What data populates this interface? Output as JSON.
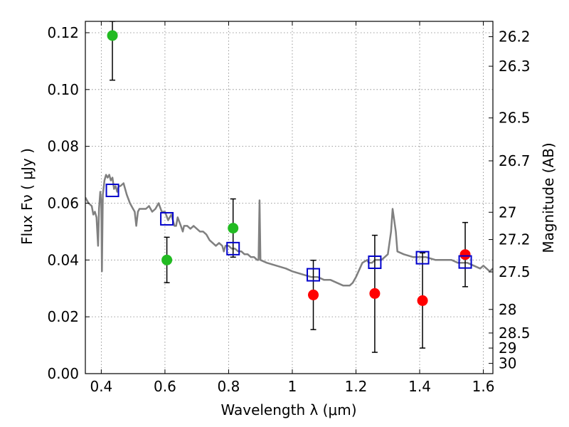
{
  "chart_data": {
    "type": "scatter",
    "xlabel": "Wavelength  λ (μm)",
    "ylabel": "Flux  Fν  ( μJy )",
    "ylabel_right": "Magnitude (AB)",
    "xlim": [
      0.35,
      1.63
    ],
    "ylim": [
      0.0,
      0.124
    ],
    "grid": true,
    "x_ticks": [
      0.4,
      0.6,
      0.8,
      1.0,
      1.2,
      1.4,
      1.6
    ],
    "x_tick_labels": [
      "0.4",
      "0.6",
      "0.8",
      "1",
      "1.2",
      "1.4",
      "1.6"
    ],
    "y_ticks": [
      0.0,
      0.02,
      0.04,
      0.06,
      0.08,
      0.1,
      0.12
    ],
    "y_tick_labels": [
      "0.00",
      "0.02",
      "0.04",
      "0.06",
      "0.08",
      "0.10",
      "0.12"
    ],
    "right_ticks": [
      {
        "label": "26.2",
        "flux": 0.1186
      },
      {
        "label": "26.3",
        "flux": 0.1082
      },
      {
        "label": "26.5",
        "flux": 0.09
      },
      {
        "label": "26.7",
        "flux": 0.0749
      },
      {
        "label": "27",
        "flux": 0.0568
      },
      {
        "label": "27.2",
        "flux": 0.0472
      },
      {
        "label": "27.5",
        "flux": 0.0358
      },
      {
        "label": "28",
        "flux": 0.0226
      },
      {
        "label": "28.5",
        "flux": 0.0143
      },
      {
        "label": "29",
        "flux": 0.009
      },
      {
        "label": "30",
        "flux": 0.0036
      }
    ],
    "series": [
      {
        "kind": "line",
        "color": "#808080",
        "points": [
          [
            0.35,
            0.062
          ],
          [
            0.36,
            0.06
          ],
          [
            0.37,
            0.059
          ],
          [
            0.375,
            0.056
          ],
          [
            0.38,
            0.057
          ],
          [
            0.385,
            0.055
          ],
          [
            0.39,
            0.045
          ],
          [
            0.393,
            0.058
          ],
          [
            0.397,
            0.064
          ],
          [
            0.4,
            0.06
          ],
          [
            0.402,
            0.036
          ],
          [
            0.405,
            0.063
          ],
          [
            0.41,
            0.068
          ],
          [
            0.415,
            0.07
          ],
          [
            0.42,
            0.069
          ],
          [
            0.425,
            0.07
          ],
          [
            0.43,
            0.068
          ],
          [
            0.435,
            0.069
          ],
          [
            0.44,
            0.065
          ],
          [
            0.445,
            0.066
          ],
          [
            0.45,
            0.064
          ],
          [
            0.455,
            0.066
          ],
          [
            0.46,
            0.066
          ],
          [
            0.47,
            0.067
          ],
          [
            0.48,
            0.063
          ],
          [
            0.49,
            0.06
          ],
          [
            0.5,
            0.058
          ],
          [
            0.505,
            0.057
          ],
          [
            0.51,
            0.052
          ],
          [
            0.515,
            0.057
          ],
          [
            0.52,
            0.058
          ],
          [
            0.53,
            0.058
          ],
          [
            0.54,
            0.058
          ],
          [
            0.55,
            0.059
          ],
          [
            0.56,
            0.057
          ],
          [
            0.57,
            0.058
          ],
          [
            0.58,
            0.06
          ],
          [
            0.59,
            0.057
          ],
          [
            0.6,
            0.057
          ],
          [
            0.61,
            0.054
          ],
          [
            0.62,
            0.056
          ],
          [
            0.63,
            0.052
          ],
          [
            0.635,
            0.052
          ],
          [
            0.64,
            0.055
          ],
          [
            0.65,
            0.052
          ],
          [
            0.656,
            0.05
          ],
          [
            0.66,
            0.052
          ],
          [
            0.67,
            0.052
          ],
          [
            0.68,
            0.051
          ],
          [
            0.69,
            0.052
          ],
          [
            0.7,
            0.051
          ],
          [
            0.71,
            0.05
          ],
          [
            0.72,
            0.05
          ],
          [
            0.73,
            0.049
          ],
          [
            0.74,
            0.047
          ],
          [
            0.75,
            0.046
          ],
          [
            0.76,
            0.045
          ],
          [
            0.77,
            0.046
          ],
          [
            0.78,
            0.045
          ],
          [
            0.785,
            0.043
          ],
          [
            0.79,
            0.045
          ],
          [
            0.8,
            0.045
          ],
          [
            0.81,
            0.044
          ],
          [
            0.82,
            0.044
          ],
          [
            0.83,
            0.043
          ],
          [
            0.84,
            0.043
          ],
          [
            0.85,
            0.042
          ],
          [
            0.86,
            0.042
          ],
          [
            0.87,
            0.041
          ],
          [
            0.88,
            0.041
          ],
          [
            0.89,
            0.04
          ],
          [
            0.894,
            0.04
          ],
          [
            0.897,
            0.061
          ],
          [
            0.9,
            0.04
          ],
          [
            0.92,
            0.039
          ],
          [
            0.95,
            0.038
          ],
          [
            0.98,
            0.037
          ],
          [
            1.0,
            0.036
          ],
          [
            1.03,
            0.035
          ],
          [
            1.06,
            0.034
          ],
          [
            1.08,
            0.034
          ],
          [
            1.1,
            0.033
          ],
          [
            1.12,
            0.033
          ],
          [
            1.14,
            0.032
          ],
          [
            1.16,
            0.031
          ],
          [
            1.18,
            0.031
          ],
          [
            1.19,
            0.032
          ],
          [
            1.2,
            0.034
          ],
          [
            1.22,
            0.039
          ],
          [
            1.235,
            0.04
          ],
          [
            1.24,
            0.039
          ],
          [
            1.25,
            0.039
          ],
          [
            1.26,
            0.04
          ],
          [
            1.28,
            0.04
          ],
          [
            1.3,
            0.042
          ],
          [
            1.31,
            0.05
          ],
          [
            1.315,
            0.058
          ],
          [
            1.325,
            0.05
          ],
          [
            1.33,
            0.043
          ],
          [
            1.35,
            0.042
          ],
          [
            1.38,
            0.041
          ],
          [
            1.4,
            0.041
          ],
          [
            1.42,
            0.041
          ],
          [
            1.45,
            0.04
          ],
          [
            1.48,
            0.04
          ],
          [
            1.5,
            0.04
          ],
          [
            1.52,
            0.039
          ],
          [
            1.55,
            0.039
          ],
          [
            1.57,
            0.038
          ],
          [
            1.59,
            0.037
          ],
          [
            1.6,
            0.038
          ],
          [
            1.62,
            0.036
          ],
          [
            1.63,
            0.037
          ]
        ]
      },
      {
        "kind": "markers",
        "marker": "circle",
        "color": "#22bb22",
        "points": [
          {
            "x": 0.435,
            "y": 0.119,
            "err_lo": 0.0157,
            "err_hi": 0.005
          },
          {
            "x": 0.606,
            "y": 0.04,
            "err_lo": 0.008,
            "err_hi": 0.008
          },
          {
            "x": 0.814,
            "y": 0.0512,
            "err_lo": 0.0102,
            "err_hi": 0.0103
          }
        ]
      },
      {
        "kind": "markers",
        "marker": "circle",
        "color": "#ff0000",
        "points": [
          {
            "x": 1.066,
            "y": 0.0277,
            "err_lo": 0.0122,
            "err_hi": 0.0122
          },
          {
            "x": 1.259,
            "y": 0.0282,
            "err_lo": 0.0207,
            "err_hi": 0.0205
          },
          {
            "x": 1.409,
            "y": 0.0257,
            "err_lo": 0.0167,
            "err_hi": 0.0168
          },
          {
            "x": 1.543,
            "y": 0.0419,
            "err_lo": 0.0113,
            "err_hi": 0.0113
          }
        ]
      },
      {
        "kind": "markers",
        "marker": "open-square",
        "color": "#0000cc",
        "points": [
          {
            "x": 0.435,
            "y": 0.0645
          },
          {
            "x": 0.606,
            "y": 0.0545
          },
          {
            "x": 0.814,
            "y": 0.044
          },
          {
            "x": 1.066,
            "y": 0.0348
          },
          {
            "x": 1.259,
            "y": 0.0392
          },
          {
            "x": 1.409,
            "y": 0.0408
          },
          {
            "x": 1.543,
            "y": 0.0393
          }
        ]
      }
    ]
  }
}
